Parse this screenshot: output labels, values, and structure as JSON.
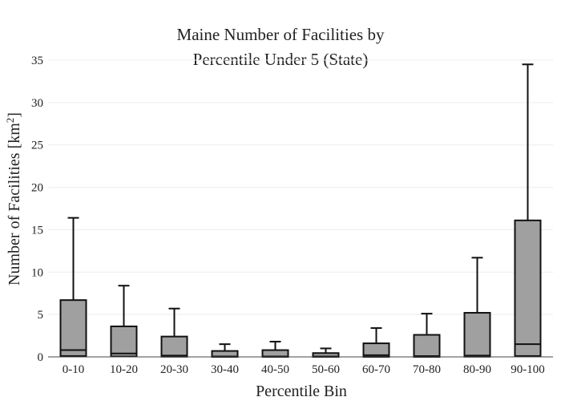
{
  "chart_data": {
    "type": "box",
    "title_lines": [
      "Maine Number of Facilities by",
      "Percentile Under 5 (State)"
    ],
    "xlabel": "Percentile Bin",
    "ylabel_main": "Number of Facilities  [km",
    "ylabel_sup": "2",
    "ylabel_end": "]",
    "ylim": [
      0,
      35
    ],
    "yticks": [
      0,
      5,
      10,
      15,
      20,
      25,
      30,
      35
    ],
    "grid": true,
    "categories": [
      "0-10",
      "10-20",
      "20-30",
      "30-40",
      "40-50",
      "50-60",
      "60-70",
      "70-80",
      "80-90",
      "90-100"
    ],
    "boxes": [
      {
        "q1": 0.1,
        "median": 0.8,
        "q3": 6.7,
        "whisker_high": 16.4
      },
      {
        "q1": 0.05,
        "median": 0.4,
        "q3": 3.6,
        "whisker_high": 8.4
      },
      {
        "q1": 0.02,
        "median": 0.15,
        "q3": 2.4,
        "whisker_high": 5.7
      },
      {
        "q1": 0.0,
        "median": 0.05,
        "q3": 0.7,
        "whisker_high": 1.5
      },
      {
        "q1": 0.0,
        "median": 0.05,
        "q3": 0.8,
        "whisker_high": 1.8
      },
      {
        "q1": 0.0,
        "median": 0.05,
        "q3": 0.45,
        "whisker_high": 1.0
      },
      {
        "q1": 0.0,
        "median": 0.2,
        "q3": 1.6,
        "whisker_high": 3.4
      },
      {
        "q1": 0.0,
        "median": 0.1,
        "q3": 2.6,
        "whisker_high": 5.1
      },
      {
        "q1": 0.02,
        "median": 0.15,
        "q3": 5.2,
        "whisker_high": 11.7
      },
      {
        "q1": 0.1,
        "median": 1.5,
        "q3": 16.1,
        "whisker_high": 34.5
      }
    ]
  }
}
